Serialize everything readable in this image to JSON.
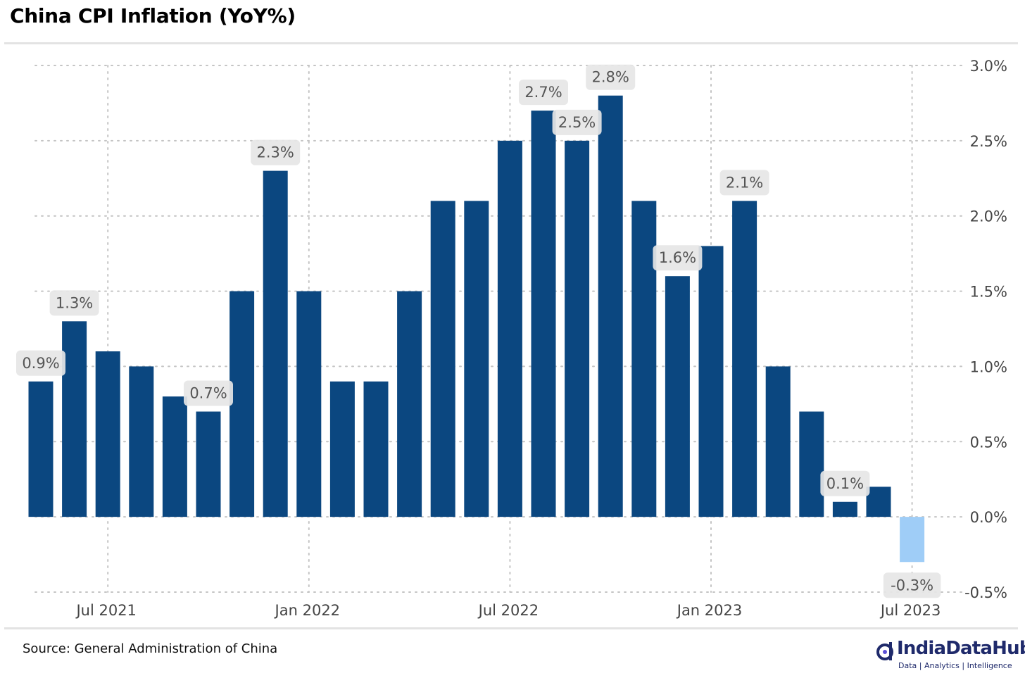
{
  "page": {
    "title": "China CPI Inflation (YoY%)",
    "source": "Source: General Administration of China",
    "brand_name": "IndiaDataHub",
    "brand_tagline": "Data | Analytics | Intelligence"
  },
  "colors": {
    "bar": "#0b4780",
    "bar_forecast": "#9fcdf7",
    "grid": "#c4c4c4",
    "label_bg": "#e6e6e6",
    "brand": "#1f2a6b"
  },
  "chart_data": {
    "type": "bar",
    "categories": [
      "2021-05",
      "2021-06",
      "2021-07",
      "2021-08",
      "2021-09",
      "2021-10",
      "2021-11",
      "2021-12",
      "2022-01",
      "2022-02",
      "2022-03",
      "2022-04",
      "2022-05",
      "2022-06",
      "2022-07",
      "2022-08",
      "2022-09",
      "2022-10",
      "2022-11",
      "2022-12",
      "2023-01",
      "2023-02",
      "2023-03",
      "2023-04",
      "2023-05",
      "2023-06",
      "2023-07"
    ],
    "values": [
      0.9,
      1.3,
      1.1,
      1.0,
      0.8,
      0.7,
      1.5,
      2.3,
      1.5,
      0.9,
      0.9,
      1.5,
      2.1,
      2.1,
      2.5,
      2.7,
      2.5,
      2.8,
      2.1,
      1.6,
      1.8,
      2.1,
      1.0,
      0.7,
      0.1,
      0.2,
      -0.3
    ],
    "highlight_last": true,
    "data_labels": [
      {
        "category": "2021-05",
        "text": "0.9%"
      },
      {
        "category": "2021-06",
        "text": "1.3%"
      },
      {
        "category": "2021-10",
        "text": "0.7%"
      },
      {
        "category": "2021-12",
        "text": "2.3%"
      },
      {
        "category": "2022-08",
        "text": "2.7%"
      },
      {
        "category": "2022-09",
        "text": "2.5%"
      },
      {
        "category": "2022-10",
        "text": "2.8%"
      },
      {
        "category": "2022-12",
        "text": "1.6%"
      },
      {
        "category": "2023-02",
        "text": "2.1%"
      },
      {
        "category": "2023-05",
        "text": "0.1%"
      },
      {
        "category": "2023-07",
        "text": "-0.3%"
      }
    ],
    "x_ticks": [
      {
        "category": "2021-07",
        "label": "Jul 2021"
      },
      {
        "category": "2022-01",
        "label": "Jan 2022"
      },
      {
        "category": "2022-07",
        "label": "Jul 2022"
      },
      {
        "category": "2023-01",
        "label": "Jan 2023"
      },
      {
        "category": "2023-07",
        "label": "Jul 2023"
      }
    ],
    "y_ticks": [
      3.0,
      2.5,
      2.0,
      1.5,
      1.0,
      0.5,
      0.0,
      -0.5
    ],
    "y_tick_labels": [
      "3.0%",
      "2.5%",
      "2.0%",
      "1.5%",
      "1.0%",
      "0.5%",
      "0.0%",
      "-0.5%"
    ],
    "ylim": [
      -0.5,
      3.0
    ],
    "y_axis_side": "right",
    "grid": true,
    "grid_style": "dotted"
  }
}
